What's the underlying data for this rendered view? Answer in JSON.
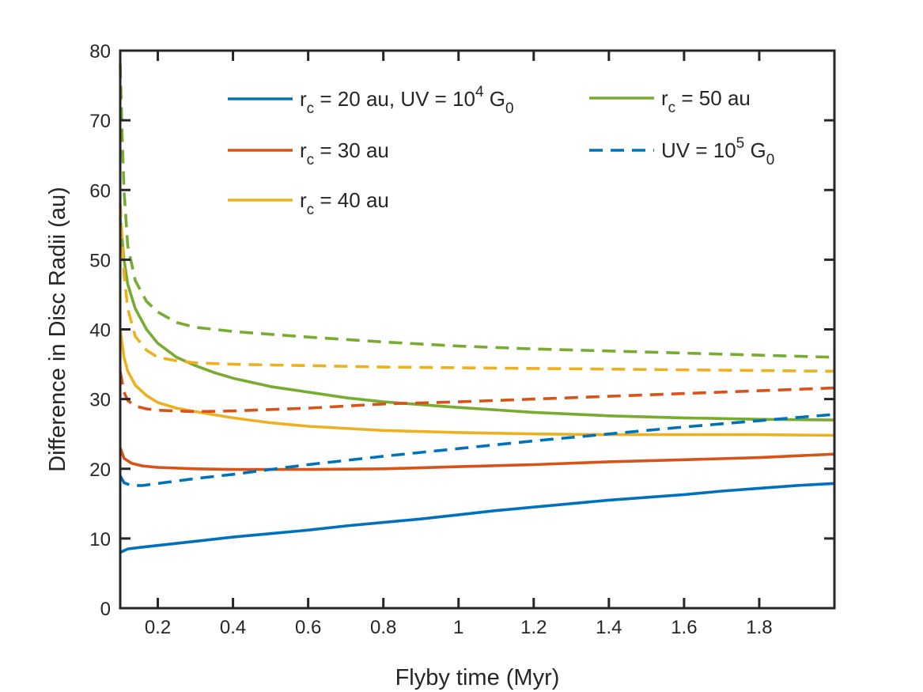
{
  "chart_data": {
    "type": "line",
    "title": "",
    "xlabel": "Flyby time (Myr)",
    "ylabel": "Difference in Disc Radii (au)",
    "xlim": [
      0.1,
      2.0
    ],
    "ylim": [
      0,
      80
    ],
    "xticks": [
      0.2,
      0.4,
      0.6,
      0.8,
      1,
      1.2,
      1.4,
      1.6,
      1.8
    ],
    "xtick_labels": [
      "0.2",
      "0.4",
      "0.6",
      "0.8",
      "1",
      "1.2",
      "1.4",
      "1.6",
      "1.8"
    ],
    "yticks": [
      0,
      10,
      20,
      30,
      40,
      50,
      60,
      70,
      80
    ],
    "ytick_labels": [
      "0",
      "10",
      "20",
      "30",
      "40",
      "50",
      "60",
      "70",
      "80"
    ],
    "grid": false,
    "legend": {
      "placement": "top-right",
      "entries": [
        {
          "parts": [
            {
              "t": "r"
            },
            {
              "t": "c",
              "sub": true
            },
            {
              "t": " = 20 au, UV = 10"
            },
            {
              "t": "4",
              "sup": true
            },
            {
              "t": " G"
            },
            {
              "t": "0",
              "sub": true
            }
          ],
          "color": "#0072BD",
          "style": "solid"
        },
        {
          "parts": [
            {
              "t": "r"
            },
            {
              "t": "c",
              "sub": true
            },
            {
              "t": " = 30 au"
            }
          ],
          "color": "#D95319",
          "style": "solid"
        },
        {
          "parts": [
            {
              "t": "r"
            },
            {
              "t": "c",
              "sub": true
            },
            {
              "t": " = 40 au"
            }
          ],
          "color": "#EDB120",
          "style": "solid"
        },
        {
          "parts": [
            {
              "t": "r"
            },
            {
              "t": "c",
              "sub": true
            },
            {
              "t": " = 50 au"
            }
          ],
          "color": "#77AC30",
          "style": "solid"
        },
        {
          "parts": [
            {
              "t": "UV = 10"
            },
            {
              "t": "5",
              "sup": true
            },
            {
              "t": " G"
            },
            {
              "t": "0",
              "sub": true
            }
          ],
          "color": "#0072BD",
          "style": "dashed"
        }
      ]
    },
    "series": [
      {
        "name": "rc = 20 au, UV = 1e4 G0",
        "color": "#0072BD",
        "style": "solid",
        "x": [
          0.1,
          0.12,
          0.15,
          0.2,
          0.3,
          0.4,
          0.5,
          0.6,
          0.7,
          0.8,
          0.9,
          1.0,
          1.1,
          1.2,
          1.3,
          1.4,
          1.5,
          1.6,
          1.7,
          1.8,
          1.9,
          2.0
        ],
        "y": [
          8.0,
          8.5,
          8.7,
          9.0,
          9.6,
          10.2,
          10.7,
          11.2,
          11.8,
          12.3,
          12.8,
          13.4,
          14.0,
          14.5,
          15.0,
          15.5,
          15.9,
          16.3,
          16.8,
          17.2,
          17.6,
          17.9
        ]
      },
      {
        "name": "rc = 30 au, UV = 1e4 G0",
        "color": "#D95319",
        "style": "solid",
        "x": [
          0.1,
          0.11,
          0.13,
          0.16,
          0.2,
          0.3,
          0.4,
          0.5,
          0.6,
          0.8,
          1.0,
          1.2,
          1.4,
          1.6,
          1.8,
          2.0
        ],
        "y": [
          23.0,
          21.5,
          20.8,
          20.4,
          20.2,
          20.0,
          19.9,
          19.9,
          19.9,
          20.0,
          20.3,
          20.6,
          21.0,
          21.3,
          21.6,
          22.1
        ]
      },
      {
        "name": "rc = 40 au, UV = 1e4 G0",
        "color": "#EDB120",
        "style": "solid",
        "x": [
          0.1,
          0.11,
          0.12,
          0.14,
          0.17,
          0.2,
          0.25,
          0.3,
          0.4,
          0.5,
          0.6,
          0.8,
          1.0,
          1.2,
          1.4,
          1.6,
          1.8,
          2.0
        ],
        "y": [
          40.0,
          36.0,
          34.0,
          32.0,
          30.5,
          29.5,
          28.7,
          28.2,
          27.3,
          26.6,
          26.1,
          25.5,
          25.2,
          25.0,
          24.9,
          24.9,
          24.9,
          24.8
        ]
      },
      {
        "name": "rc = 50 au, UV = 1e4 G0",
        "color": "#77AC30",
        "style": "solid",
        "x": [
          0.1,
          0.11,
          0.12,
          0.14,
          0.17,
          0.2,
          0.25,
          0.3,
          0.35,
          0.4,
          0.5,
          0.6,
          0.7,
          0.8,
          0.9,
          1.0,
          1.2,
          1.4,
          1.6,
          1.8,
          2.0
        ],
        "y": [
          56.0,
          50.0,
          46.5,
          43.0,
          40.0,
          38.0,
          36.0,
          34.8,
          33.8,
          33.0,
          31.8,
          31.0,
          30.2,
          29.6,
          29.2,
          28.8,
          28.1,
          27.6,
          27.3,
          27.1,
          27.0
        ]
      },
      {
        "name": "rc = 20 au, UV = 1e5 G0",
        "color": "#0072BD",
        "style": "dashed",
        "x": [
          0.1,
          0.11,
          0.13,
          0.16,
          0.2,
          0.3,
          0.4,
          0.5,
          0.6,
          0.8,
          1.0,
          1.2,
          1.4,
          1.6,
          1.8,
          2.0
        ],
        "y": [
          19.0,
          18.0,
          17.6,
          17.6,
          17.9,
          18.6,
          19.2,
          19.9,
          20.6,
          21.8,
          22.9,
          24.0,
          25.0,
          26.0,
          26.9,
          27.8
        ]
      },
      {
        "name": "rc = 30 au, UV = 1e5 G0",
        "color": "#D95319",
        "style": "dashed",
        "x": [
          0.1,
          0.11,
          0.12,
          0.14,
          0.17,
          0.2,
          0.25,
          0.3,
          0.4,
          0.6,
          0.8,
          1.0,
          1.2,
          1.4,
          1.6,
          1.8,
          2.0
        ],
        "y": [
          34.0,
          31.0,
          29.8,
          29.0,
          28.6,
          28.4,
          28.3,
          28.2,
          28.3,
          28.7,
          29.3,
          29.6,
          30.0,
          30.4,
          30.8,
          31.2,
          31.6
        ]
      },
      {
        "name": "rc = 40 au, UV = 1e5 G0",
        "color": "#EDB120",
        "style": "dashed",
        "x": [
          0.1,
          0.11,
          0.12,
          0.14,
          0.17,
          0.2,
          0.25,
          0.3,
          0.4,
          0.6,
          0.8,
          1.0,
          1.2,
          1.4,
          1.6,
          1.8,
          2.0
        ],
        "y": [
          58.0,
          48.0,
          43.0,
          39.0,
          37.0,
          36.0,
          35.5,
          35.2,
          35.0,
          34.8,
          34.6,
          34.5,
          34.4,
          34.3,
          34.2,
          34.1,
          34.0
        ]
      },
      {
        "name": "rc = 50 au, UV = 1e5 G0",
        "color": "#77AC30",
        "style": "dashed",
        "x": [
          0.1,
          0.105,
          0.11,
          0.12,
          0.14,
          0.17,
          0.2,
          0.25,
          0.3,
          0.4,
          0.5,
          0.6,
          0.8,
          1.0,
          1.2,
          1.4,
          1.6,
          1.8,
          2.0
        ],
        "y": [
          78.0,
          68.0,
          60.0,
          52.0,
          47.0,
          44.0,
          42.5,
          41.0,
          40.3,
          39.7,
          39.3,
          38.9,
          38.2,
          37.6,
          37.2,
          36.9,
          36.6,
          36.3,
          36.0
        ]
      }
    ]
  }
}
